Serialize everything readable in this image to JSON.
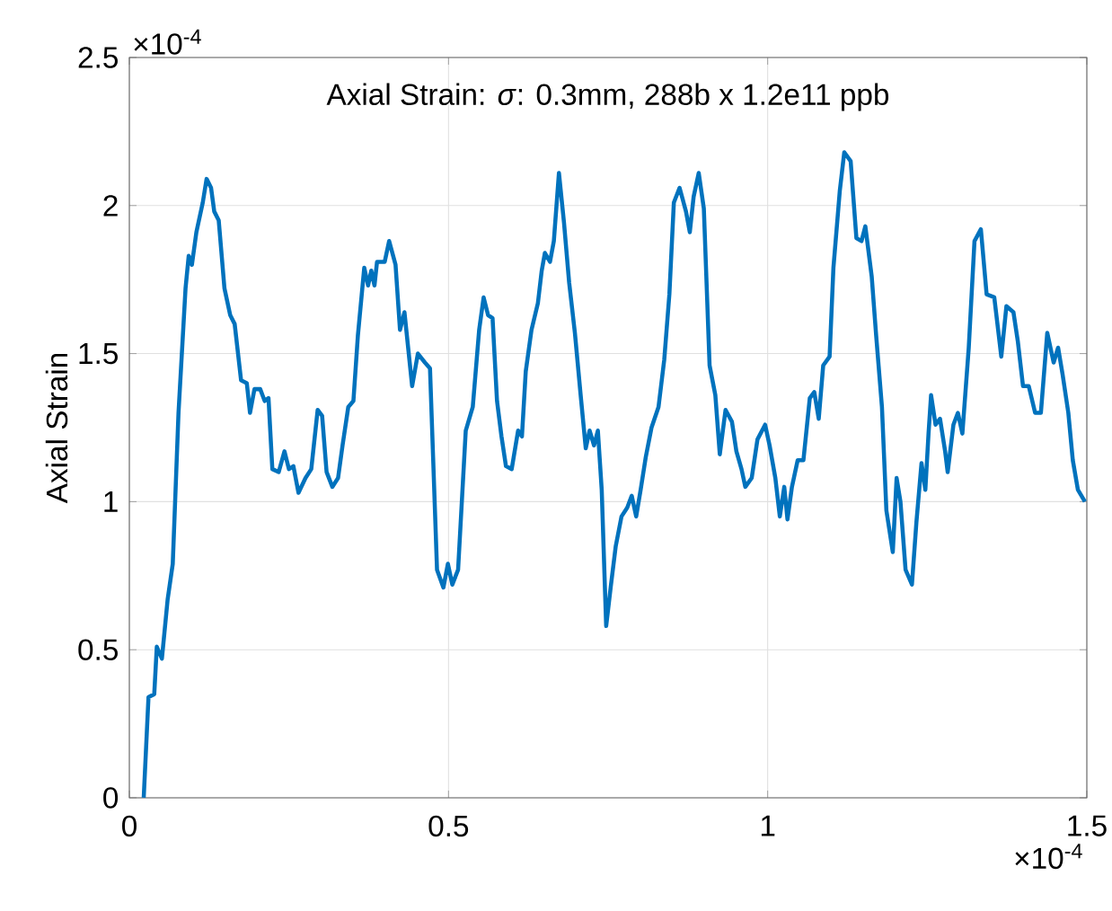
{
  "chart_data": {
    "type": "line",
    "title": "Axial Strain: *σ*: 0.3mm, 288b x 1.2e11 ppb",
    "ylabel": "Axial Strain",
    "annotations": [
      "×10$^{-4}$",
      "×10$^{-4}$"
    ],
    "xlim": [
      0,
      1.5
    ],
    "ylim": [
      0,
      2.5
    ],
    "xticks": [
      0,
      0.5,
      1,
      1.5
    ],
    "yticks": [
      0,
      0.5,
      1,
      1.5,
      2,
      2.5
    ],
    "grid": true,
    "line_style": "solid",
    "marker": "none",
    "series": [
      {
        "color": "#0072bd",
        "x": [
          0.0225,
          0.03,
          0.039,
          0.043,
          0.051,
          0.06,
          0.068,
          0.077,
          0.088,
          0.093,
          0.098,
          0.105,
          0.115,
          0.121,
          0.128,
          0.133,
          0.14,
          0.149,
          0.158,
          0.165,
          0.175,
          0.184,
          0.189,
          0.196,
          0.205,
          0.212,
          0.218,
          0.224,
          0.234,
          0.243,
          0.25,
          0.257,
          0.265,
          0.276,
          0.285,
          0.295,
          0.302,
          0.309,
          0.318,
          0.327,
          0.334,
          0.343,
          0.351,
          0.358,
          0.368,
          0.374,
          0.379,
          0.384,
          0.388,
          0.4,
          0.407,
          0.417,
          0.424,
          0.431,
          0.443,
          0.452,
          0.463,
          0.471,
          0.482,
          0.492,
          0.499,
          0.506,
          0.515,
          0.527,
          0.538,
          0.548,
          0.555,
          0.562,
          0.569,
          0.576,
          0.583,
          0.59,
          0.599,
          0.609,
          0.615,
          0.621,
          0.63,
          0.64,
          0.646,
          0.651,
          0.659,
          0.665,
          0.673,
          0.681,
          0.689,
          0.698,
          0.707,
          0.715,
          0.721,
          0.728,
          0.734,
          0.74,
          0.747,
          0.754,
          0.762,
          0.771,
          0.78,
          0.787,
          0.794,
          0.801,
          0.809,
          0.818,
          0.829,
          0.838,
          0.846,
          0.853,
          0.862,
          0.872,
          0.878,
          0.884,
          0.892,
          0.9,
          0.909,
          0.918,
          0.925,
          0.934,
          0.944,
          0.951,
          0.959,
          0.965,
          0.975,
          0.984,
          0.996,
          1.003,
          1.012,
          1.019,
          1.026,
          1.031,
          1.038,
          1.047,
          1.056,
          1.066,
          1.073,
          1.08,
          1.087,
          1.097,
          1.103,
          1.113,
          1.12,
          1.13,
          1.139,
          1.147,
          1.153,
          1.163,
          1.17,
          1.179,
          1.186,
          1.196,
          1.202,
          1.208,
          1.216,
          1.226,
          1.233,
          1.241,
          1.247,
          1.252,
          1.256,
          1.263,
          1.27,
          1.278,
          1.282,
          1.291,
          1.298,
          1.305,
          1.315,
          1.324,
          1.334,
          1.343,
          1.355,
          1.366,
          1.374,
          1.385,
          1.392,
          1.4,
          1.409,
          1.419,
          1.428,
          1.438,
          1.448,
          1.455,
          1.462,
          1.471,
          1.478,
          1.486,
          1.497
        ],
        "values": [
          0,
          0.34,
          0.35,
          0.51,
          0.47,
          0.67,
          0.79,
          1.3,
          1.72,
          1.83,
          1.8,
          1.91,
          2.01,
          2.09,
          2.06,
          1.98,
          1.95,
          1.72,
          1.63,
          1.6,
          1.41,
          1.4,
          1.3,
          1.38,
          1.38,
          1.34,
          1.35,
          1.11,
          1.1,
          1.17,
          1.11,
          1.12,
          1.03,
          1.08,
          1.11,
          1.31,
          1.29,
          1.1,
          1.05,
          1.08,
          1.19,
          1.32,
          1.34,
          1.56,
          1.79,
          1.73,
          1.78,
          1.73,
          1.81,
          1.81,
          1.88,
          1.8,
          1.58,
          1.64,
          1.39,
          1.5,
          1.47,
          1.45,
          0.77,
          0.71,
          0.79,
          0.72,
          0.77,
          1.24,
          1.32,
          1.58,
          1.69,
          1.63,
          1.62,
          1.34,
          1.22,
          1.12,
          1.11,
          1.24,
          1.22,
          1.44,
          1.58,
          1.67,
          1.78,
          1.84,
          1.81,
          1.88,
          2.11,
          1.94,
          1.74,
          1.57,
          1.36,
          1.18,
          1.24,
          1.19,
          1.24,
          1.04,
          0.58,
          0.71,
          0.85,
          0.95,
          0.98,
          1.02,
          0.95,
          1.04,
          1.15,
          1.25,
          1.32,
          1.48,
          1.7,
          2.01,
          2.06,
          1.98,
          1.91,
          2.03,
          2.11,
          1.99,
          1.46,
          1.36,
          1.16,
          1.31,
          1.27,
          1.17,
          1.11,
          1.05,
          1.08,
          1.21,
          1.26,
          1.19,
          1.08,
          0.95,
          1.05,
          0.94,
          1.05,
          1.14,
          1.14,
          1.35,
          1.37,
          1.28,
          1.46,
          1.49,
          1.79,
          2.05,
          2.18,
          2.15,
          1.89,
          1.88,
          1.93,
          1.76,
          1.56,
          1.32,
          0.97,
          0.83,
          1.08,
          1.0,
          0.77,
          0.72,
          0.93,
          1.13,
          1.04,
          1.23,
          1.36,
          1.26,
          1.28,
          1.17,
          1.1,
          1.26,
          1.3,
          1.23,
          1.52,
          1.88,
          1.92,
          1.7,
          1.69,
          1.49,
          1.66,
          1.64,
          1.54,
          1.39,
          1.39,
          1.3,
          1.3,
          1.57,
          1.47,
          1.52,
          1.43,
          1.3,
          1.14,
          1.04,
          1.0
        ]
      }
    ]
  }
}
